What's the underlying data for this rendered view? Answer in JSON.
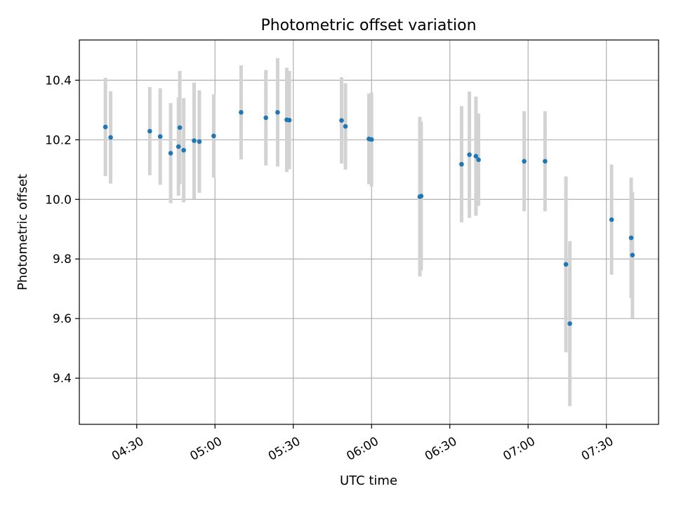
{
  "chart_data": {
    "type": "scatter",
    "title": "Photometric offset variation",
    "xlabel": "UTC time",
    "ylabel": "Photometric offset",
    "x_ticks": [
      "04:30",
      "05:00",
      "05:30",
      "06:00",
      "06:30",
      "07:00",
      "07:30"
    ],
    "y_ticks": [
      "9.4",
      "9.6",
      "9.8",
      "10.0",
      "10.2",
      "10.4"
    ],
    "xlim": [
      "04:08",
      "07:50"
    ],
    "ylim": [
      9.245,
      10.535
    ],
    "grid": true,
    "colors": {
      "point": "#1f77b4",
      "error_bar": "#d3d3d3",
      "grid": "#b0b0b0"
    },
    "points": [
      {
        "x": "04:18",
        "y": 10.243,
        "yerr": 0.165
      },
      {
        "x": "04:20",
        "y": 10.208,
        "yerr": 0.155
      },
      {
        "x": "04:35",
        "y": 10.229,
        "yerr": 0.148
      },
      {
        "x": "04:39",
        "y": 10.211,
        "yerr": 0.162
      },
      {
        "x": "04:43",
        "y": 10.155,
        "yerr": 0.168
      },
      {
        "x": "04:46",
        "y": 10.177,
        "yerr": 0.165
      },
      {
        "x": "04:46.5",
        "y": 10.241,
        "yerr": 0.19
      },
      {
        "x": "04:48",
        "y": 10.165,
        "yerr": 0.175
      },
      {
        "x": "04:52",
        "y": 10.197,
        "yerr": 0.195
      },
      {
        "x": "04:54",
        "y": 10.194,
        "yerr": 0.172
      },
      {
        "x": "04:59.5",
        "y": 10.213,
        "yerr": 0.14
      },
      {
        "x": "05:10",
        "y": 10.292,
        "yerr": 0.158
      },
      {
        "x": "05:19.5",
        "y": 10.274,
        "yerr": 0.16
      },
      {
        "x": "05:24",
        "y": 10.292,
        "yerr": 0.182
      },
      {
        "x": "05:27.5",
        "y": 10.267,
        "yerr": 0.175
      },
      {
        "x": "05:28.5",
        "y": 10.266,
        "yerr": 0.165
      },
      {
        "x": "05:48.5",
        "y": 10.265,
        "yerr": 0.145
      },
      {
        "x": "05:50",
        "y": 10.245,
        "yerr": 0.145
      },
      {
        "x": "05:59",
        "y": 10.203,
        "yerr": 0.152
      },
      {
        "x": "06:00",
        "y": 10.201,
        "yerr": 0.158
      },
      {
        "x": "06:18.5",
        "y": 10.009,
        "yerr": 0.268
      },
      {
        "x": "06:19",
        "y": 10.011,
        "yerr": 0.25
      },
      {
        "x": "06:34.5",
        "y": 10.118,
        "yerr": 0.195
      },
      {
        "x": "06:37.5",
        "y": 10.15,
        "yerr": 0.212
      },
      {
        "x": "06:40",
        "y": 10.145,
        "yerr": 0.2
      },
      {
        "x": "06:41",
        "y": 10.133,
        "yerr": 0.155
      },
      {
        "x": "06:58.5",
        "y": 10.128,
        "yerr": 0.168
      },
      {
        "x": "07:06.5",
        "y": 10.128,
        "yerr": 0.168
      },
      {
        "x": "07:14.5",
        "y": 9.782,
        "yerr": 0.295
      },
      {
        "x": "07:16",
        "y": 9.583,
        "yerr": 0.277
      },
      {
        "x": "07:32",
        "y": 9.932,
        "yerr": 0.185
      },
      {
        "x": "07:39.5",
        "y": 9.871,
        "yerr": 0.202
      },
      {
        "x": "07:40",
        "y": 9.813,
        "yerr": 0.212
      }
    ]
  }
}
